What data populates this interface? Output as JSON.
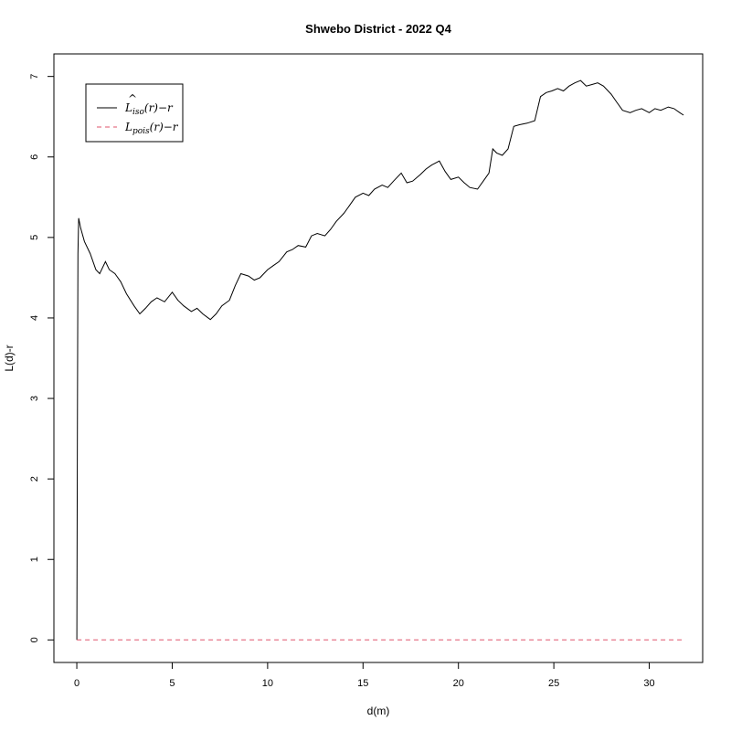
{
  "chart_data": {
    "type": "line",
    "title": "Shwebo District - 2022 Q4",
    "xlabel": "d(m)",
    "ylabel": "L(d)-r",
    "xlim": [
      -1.2,
      32.8
    ],
    "ylim": [
      -0.28,
      7.28
    ],
    "xticks": [
      0,
      5,
      10,
      15,
      20,
      25,
      30
    ],
    "yticks": [
      0,
      1,
      2,
      3,
      4,
      5,
      6,
      7
    ],
    "grid": false,
    "legend_position": "top-left",
    "series": [
      {
        "legend_main": "L",
        "legend_hat": "^",
        "legend_sub": "iso",
        "legend_tail": "(r)−r",
        "color": "#000000",
        "dash": "solid",
        "x": [
          0,
          0.03,
          0.06,
          0.1,
          0.2,
          0.4,
          0.7,
          1.0,
          1.2,
          1.5,
          1.7,
          2.0,
          2.3,
          2.6,
          3.0,
          3.3,
          3.6,
          3.9,
          4.2,
          4.6,
          5.0,
          5.3,
          5.6,
          6.0,
          6.3,
          6.6,
          7.0,
          7.3,
          7.6,
          8.0,
          8.3,
          8.6,
          9.0,
          9.3,
          9.6,
          10.0,
          10.3,
          10.6,
          11.0,
          11.3,
          11.6,
          12.0,
          12.3,
          12.6,
          13.0,
          13.3,
          13.6,
          14.0,
          14.3,
          14.6,
          15.0,
          15.3,
          15.6,
          16.0,
          16.3,
          16.6,
          17.0,
          17.3,
          17.6,
          18.0,
          18.3,
          18.6,
          19.0,
          19.3,
          19.6,
          20.0,
          20.3,
          20.6,
          21.0,
          21.3,
          21.6,
          21.8,
          22.0,
          22.3,
          22.6,
          22.9,
          23.2,
          23.6,
          24.0,
          24.3,
          24.6,
          24.9,
          25.2,
          25.5,
          25.8,
          26.1,
          26.4,
          26.7,
          27.0,
          27.3,
          27.6,
          28.0,
          28.3,
          28.6,
          29.0,
          29.3,
          29.6,
          30.0,
          30.3,
          30.6,
          31.0,
          31.3,
          31.6,
          31.8
        ],
        "y": [
          0,
          2.6,
          4.8,
          5.24,
          5.12,
          4.95,
          4.8,
          4.6,
          4.55,
          4.7,
          4.6,
          4.55,
          4.45,
          4.3,
          4.15,
          4.05,
          4.12,
          4.2,
          4.25,
          4.2,
          4.32,
          4.22,
          4.15,
          4.08,
          4.12,
          4.05,
          3.98,
          4.05,
          4.15,
          4.22,
          4.4,
          4.55,
          4.52,
          4.47,
          4.5,
          4.6,
          4.65,
          4.7,
          4.82,
          4.85,
          4.9,
          4.88,
          5.02,
          5.05,
          5.02,
          5.1,
          5.2,
          5.3,
          5.4,
          5.5,
          5.55,
          5.52,
          5.6,
          5.65,
          5.62,
          5.7,
          5.8,
          5.68,
          5.7,
          5.78,
          5.85,
          5.9,
          5.95,
          5.82,
          5.72,
          5.75,
          5.68,
          5.62,
          5.6,
          5.7,
          5.8,
          6.1,
          6.05,
          6.02,
          6.1,
          6.38,
          6.4,
          6.42,
          6.45,
          6.75,
          6.8,
          6.82,
          6.85,
          6.82,
          6.88,
          6.92,
          6.95,
          6.88,
          6.9,
          6.92,
          6.88,
          6.78,
          6.68,
          6.58,
          6.55,
          6.58,
          6.6,
          6.55,
          6.6,
          6.58,
          6.62,
          6.6,
          6.55,
          6.52
        ]
      },
      {
        "legend_main": "L",
        "legend_hat": "",
        "legend_sub": "pois",
        "legend_tail": "(r)−r",
        "color": "#DF536B",
        "dash": "dashed",
        "x": [
          0,
          31.8
        ],
        "y": [
          0,
          0
        ]
      }
    ]
  }
}
